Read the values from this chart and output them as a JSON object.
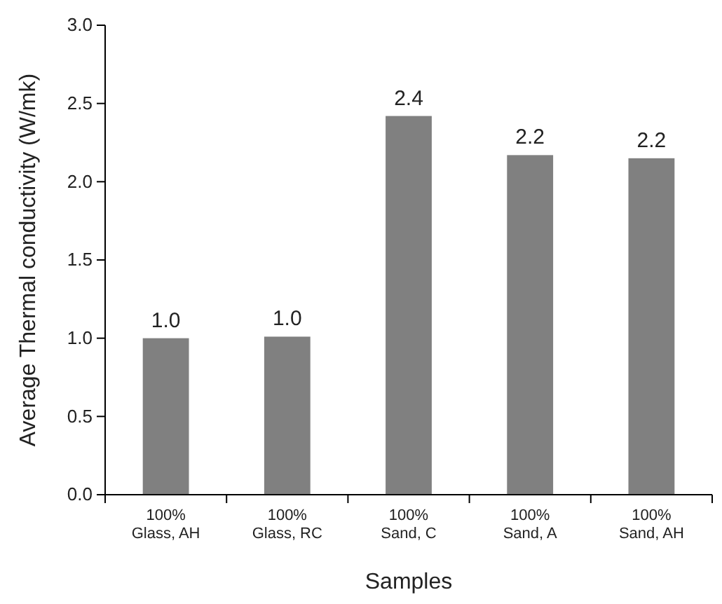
{
  "chart_data": {
    "type": "bar",
    "xlabel": "Samples",
    "ylabel": "Average Thermal conductivity (W/mk)",
    "categories": [
      "100%\nGlass, AH",
      "100%\nGlass, RC",
      "100%\nSand, C",
      "100%\nSand, A",
      "100%\nSand, AH"
    ],
    "values": [
      1.0,
      1.01,
      2.42,
      2.17,
      2.15
    ],
    "color": "#808080",
    "value_labels": [
      "1.0",
      "1.0",
      "2.4",
      "2.2",
      "2.2"
    ],
    "ylim": [
      0,
      3
    ],
    "yticks": [
      {
        "value": 0,
        "label": "0.0"
      },
      {
        "value": 0.5,
        "label": "0.5"
      },
      {
        "value": 1,
        "label": "1.0"
      },
      {
        "value": 1.5,
        "label": "1.5"
      },
      {
        "value": 2,
        "label": "2.0"
      },
      {
        "value": 2.5,
        "label": "2.5"
      },
      {
        "value": 3,
        "label": "3.0"
      }
    ]
  }
}
